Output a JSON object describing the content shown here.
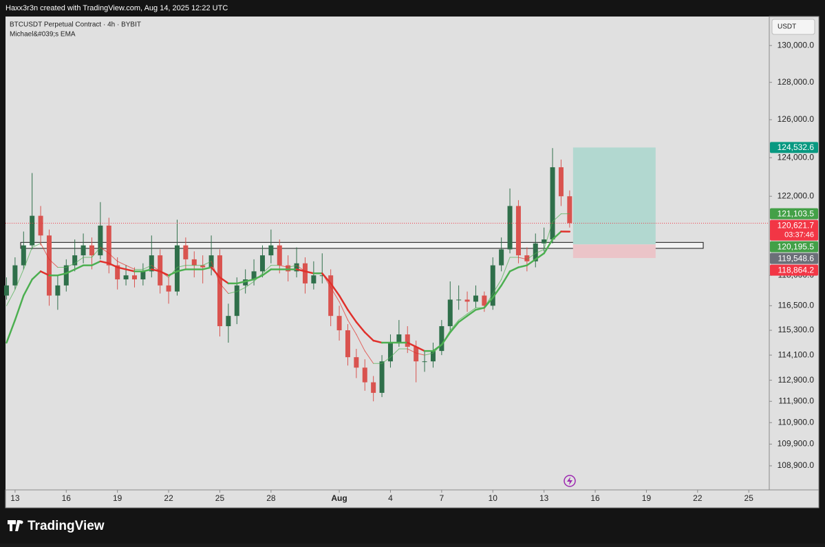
{
  "header": "Haxx3r3n created with TradingView.com, Aug 14, 2025 12:22 UTC",
  "brand": "TradingView",
  "chart_data": {
    "type": "candlestick",
    "title": "BTCUSDT Perpetual Contract · 4h · BYBIT",
    "indicator": "Michael&#039;s EMA",
    "currency": "USDT",
    "log_scale": true,
    "grid": false,
    "xlim": [
      -0.56,
      44.2
    ],
    "ylim": [
      107800,
      131600
    ],
    "xticks": [
      {
        "value": 0,
        "label": "13"
      },
      {
        "value": 3,
        "label": "16"
      },
      {
        "value": 6,
        "label": "19"
      },
      {
        "value": 9,
        "label": "22"
      },
      {
        "value": 12,
        "label": "25"
      },
      {
        "value": 15,
        "label": "28"
      },
      {
        "value": 19,
        "label": "Aug"
      },
      {
        "value": 22,
        "label": "4"
      },
      {
        "value": 25,
        "label": "7"
      },
      {
        "value": 28,
        "label": "10"
      },
      {
        "value": 31,
        "label": "13"
      },
      {
        "value": 34,
        "label": "16"
      },
      {
        "value": 37,
        "label": "19"
      },
      {
        "value": 40,
        "label": "22"
      },
      {
        "value": 43,
        "label": "25"
      }
    ],
    "yticks": [
      {
        "value": 130000,
        "label": "130,000.0"
      },
      {
        "value": 128000,
        "label": "128,000.0"
      },
      {
        "value": 126000,
        "label": "126,000.0"
      },
      {
        "value": 124000,
        "label": "124,000.0"
      },
      {
        "value": 122000,
        "label": "122,000.0"
      },
      {
        "value": 118000,
        "label": "118,000.0"
      },
      {
        "value": 116500,
        "label": "116,500.0"
      },
      {
        "value": 115300,
        "label": "115,300.0"
      },
      {
        "value": 114100,
        "label": "114,100.0"
      },
      {
        "value": 112900,
        "label": "112,900.0"
      },
      {
        "value": 111900,
        "label": "111,900.0"
      },
      {
        "value": 110900,
        "label": "110,900.0"
      },
      {
        "value": 109900,
        "label": "109,900.0"
      },
      {
        "value": 108900,
        "label": "108,900.0"
      }
    ],
    "up_color": "#2f6f4a",
    "down_color": "#d9534f",
    "x": [
      -0.5,
      0,
      0.5,
      1,
      1.5,
      2,
      2.5,
      3,
      3.5,
      4,
      4.5,
      5,
      5.5,
      6,
      6.5,
      7,
      7.5,
      8,
      8.5,
      9,
      9.5,
      10,
      10.5,
      11,
      11.5,
      12,
      12.5,
      13,
      13.5,
      14,
      14.5,
      15,
      15.5,
      16,
      16.5,
      17,
      17.5,
      18,
      18.5,
      19,
      19.5,
      20,
      20.5,
      21,
      21.5,
      22,
      22.5,
      23,
      23.5,
      24,
      24.5,
      25,
      25.5,
      26,
      26.5,
      27,
      27.5,
      28,
      28.5,
      29,
      29.5,
      30,
      30.5,
      31,
      31.5,
      32,
      32.5
    ],
    "open": [
      117000,
      117500,
      118500,
      119500,
      121000,
      120000,
      117000,
      117500,
      118500,
      119000,
      119500,
      119000,
      120500,
      118500,
      117800,
      118000,
      117800,
      118200,
      119000,
      117500,
      117200,
      119500,
      118800,
      118500,
      118400,
      119000,
      115500,
      116000,
      117500,
      117800,
      118200,
      119000,
      119500,
      118500,
      118200,
      118600,
      117600,
      118000,
      118000,
      116000,
      115300,
      114000,
      113500,
      112800,
      112300,
      113800,
      114700,
      115100,
      114500,
      113800,
      113800,
      114300,
      115500,
      116800,
      116800,
      116700,
      117000,
      116500,
      118500,
      119300,
      121500,
      119000,
      118700,
      119600,
      119800,
      123500,
      122000
    ],
    "high": [
      117900,
      118900,
      120200,
      123200,
      121500,
      120300,
      118000,
      118800,
      119800,
      120100,
      119900,
      121700,
      120900,
      118900,
      118500,
      118400,
      118600,
      120000,
      119300,
      117900,
      120800,
      119900,
      119200,
      119000,
      120000,
      119300,
      116600,
      117900,
      118300,
      118800,
      119500,
      120300,
      119800,
      119000,
      119400,
      118900,
      118700,
      119100,
      118300,
      116500,
      115600,
      114400,
      113900,
      113100,
      114100,
      115100,
      115800,
      115500,
      114800,
      114300,
      114700,
      115800,
      117700,
      117500,
      117200,
      117500,
      117200,
      118900,
      119900,
      122400,
      121800,
      119400,
      120100,
      120400,
      124500,
      123900,
      122300
    ],
    "low": [
      116800,
      117300,
      118300,
      119300,
      119500,
      116500,
      116300,
      117200,
      118200,
      118600,
      118300,
      118800,
      118100,
      117300,
      117500,
      117400,
      117500,
      117900,
      117100,
      116600,
      117000,
      118300,
      117900,
      117600,
      118000,
      115000,
      114700,
      115600,
      117100,
      117500,
      117900,
      118600,
      118100,
      117700,
      117900,
      117100,
      117300,
      117600,
      115500,
      114800,
      113600,
      113000,
      112400,
      111900,
      112100,
      113500,
      114500,
      114200,
      112800,
      113300,
      113500,
      114100,
      115300,
      116300,
      116200,
      116400,
      116200,
      116300,
      118200,
      119100,
      118600,
      118200,
      118400,
      119200,
      119600,
      121500,
      120400
    ],
    "close": [
      117500,
      118500,
      119500,
      121000,
      120000,
      117000,
      117500,
      118500,
      119000,
      119500,
      119000,
      120500,
      118500,
      117800,
      118000,
      117800,
      118200,
      119000,
      117500,
      117200,
      119500,
      118800,
      118500,
      118400,
      119000,
      115500,
      116000,
      117500,
      117800,
      118200,
      119000,
      119500,
      118500,
      118200,
      118600,
      117600,
      118000,
      118000,
      116000,
      115300,
      114000,
      113500,
      112800,
      112300,
      113800,
      114700,
      115100,
      114500,
      113800,
      113800,
      114300,
      115500,
      116800,
      116800,
      116700,
      117000,
      116500,
      118500,
      119300,
      121500,
      119000,
      118700,
      119600,
      119800,
      123500,
      122000,
      120621.7
    ],
    "ema_up_color": "#4caf50",
    "ema_down_color": "#e0302b",
    "ema_fast": {
      "width": 1,
      "values": [
        116500,
        117300,
        118300,
        119400,
        119600,
        118800,
        118400,
        118400,
        118600,
        118900,
        118900,
        119400,
        119100,
        118700,
        118500,
        118300,
        118300,
        118500,
        118200,
        117900,
        118400,
        118500,
        118500,
        118500,
        118700,
        117600,
        117100,
        117200,
        117400,
        117700,
        118100,
        118500,
        118500,
        118400,
        118500,
        118200,
        118100,
        118100,
        117400,
        116700,
        115800,
        115100,
        114300,
        113700,
        113700,
        114000,
        114400,
        114400,
        114200,
        114100,
        114200,
        114600,
        115300,
        115800,
        116100,
        116400,
        116400,
        117100,
        117800,
        118900,
        118900,
        118800,
        119100,
        119300,
        120700,
        121100,
        121103.5
      ]
    },
    "ema_slow": {
      "width": 2.5,
      "values": [
        114700,
        115800,
        117000,
        117800,
        118200,
        118000,
        118000,
        118100,
        118300,
        118500,
        118500,
        118700,
        118600,
        118400,
        118300,
        118200,
        118200,
        118300,
        118200,
        118000,
        118200,
        118300,
        118300,
        118300,
        118400,
        117900,
        117600,
        117600,
        117700,
        117800,
        118000,
        118300,
        118300,
        118300,
        118300,
        118200,
        118100,
        118100,
        117600,
        117000,
        116300,
        115700,
        115200,
        114800,
        114700,
        114700,
        114700,
        114700,
        114500,
        114300,
        114300,
        114600,
        115200,
        115700,
        116000,
        116300,
        116400,
        116900,
        117500,
        118200,
        118400,
        118500,
        118800,
        119100,
        119800,
        120200,
        120195.5
      ]
    },
    "zone": {
      "x_start": 0.33,
      "x_end": 40.33,
      "top": 119650,
      "bottom": 119350
    },
    "position": {
      "x_start": 32.7,
      "x_end": 37.54,
      "target": 124532.6,
      "entry": 119548.6,
      "stop": 118864.2,
      "profit_color": "#b2d8d0",
      "loss_color": "#ebc4c8"
    },
    "price_labels": [
      {
        "value": 124532.6,
        "label": "124,532.6",
        "color": "#089981"
      },
      {
        "value": 121103.5,
        "label": "121,103.5",
        "color": "#43a047"
      },
      {
        "value": 120621.7,
        "label": "120,621.7",
        "color": "#f23645",
        "countdown": "03:37:46"
      },
      {
        "value": 120195.5,
        "label": "120,195.5",
        "color": "#43a047"
      },
      {
        "value": 119548.6,
        "label": "119,548.6",
        "color": "#6b6f78"
      },
      {
        "value": 118864.2,
        "label": "118,864.2",
        "color": "#f23645"
      }
    ]
  }
}
